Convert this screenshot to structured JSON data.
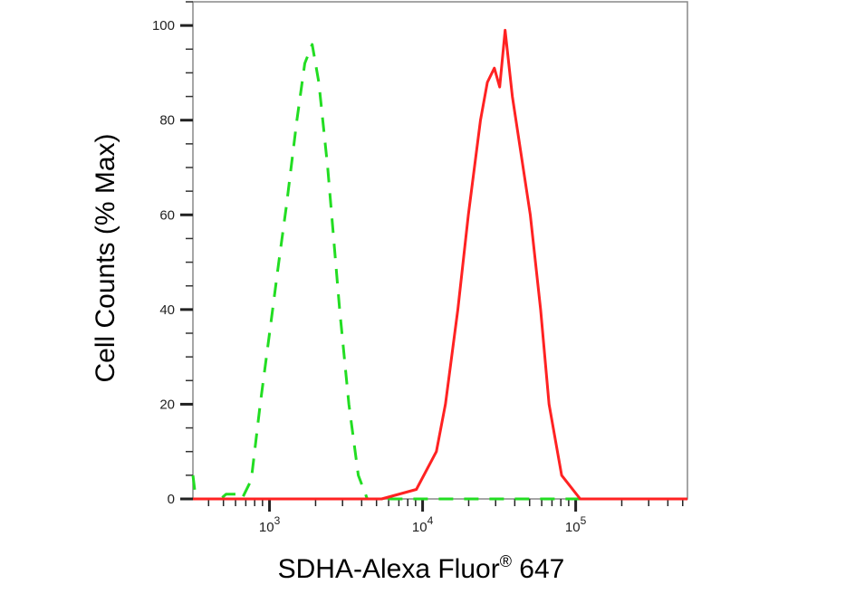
{
  "chart_data": {
    "type": "line",
    "title": "",
    "xlabel": "SDHA-Alexa Fluor",
    "xlabel_superscript": "®",
    "xlabel_suffix": " 647",
    "ylabel": "Cell Counts (% Max)",
    "x_scale": "log",
    "xlim": [
      316,
      537000
    ],
    "ylim": [
      0,
      105
    ],
    "x_ticks": [
      {
        "value": 1000,
        "base": "10",
        "exp": "3"
      },
      {
        "value": 10000,
        "base": "10",
        "exp": "4"
      },
      {
        "value": 100000,
        "base": "10",
        "exp": "5"
      }
    ],
    "y_ticks": [
      0,
      20,
      40,
      60,
      80,
      100
    ],
    "grid": false,
    "series": [
      {
        "style": "dashed",
        "color": "#22dd22",
        "points": [
          [
            316,
            5
          ],
          [
            330,
            0
          ],
          [
            480,
            0
          ],
          [
            520,
            1
          ],
          [
            600,
            1
          ],
          [
            660,
            0
          ],
          [
            760,
            4
          ],
          [
            870,
            20
          ],
          [
            1000,
            35
          ],
          [
            1150,
            50
          ],
          [
            1290,
            62
          ],
          [
            1510,
            80
          ],
          [
            1700,
            92
          ],
          [
            1900,
            96
          ],
          [
            2100,
            88
          ],
          [
            2400,
            70
          ],
          [
            2870,
            40
          ],
          [
            3300,
            20
          ],
          [
            3800,
            5
          ],
          [
            4350,
            0
          ],
          [
            10000,
            0
          ],
          [
            100000,
            0
          ],
          [
            537000,
            0
          ]
        ]
      },
      {
        "style": "solid",
        "color": "#ff2222",
        "points": [
          [
            316,
            0
          ],
          [
            5400,
            0
          ],
          [
            9100,
            2
          ],
          [
            12300,
            10
          ],
          [
            14100,
            20
          ],
          [
            17000,
            40
          ],
          [
            19900,
            60
          ],
          [
            23900,
            80
          ],
          [
            26500,
            88
          ],
          [
            29400,
            91
          ],
          [
            31900,
            87
          ],
          [
            34600,
            99
          ],
          [
            38600,
            85
          ],
          [
            50500,
            60
          ],
          [
            59000,
            40
          ],
          [
            67000,
            20
          ],
          [
            81000,
            5
          ],
          [
            107000,
            0
          ],
          [
            537000,
            0
          ]
        ]
      }
    ]
  }
}
